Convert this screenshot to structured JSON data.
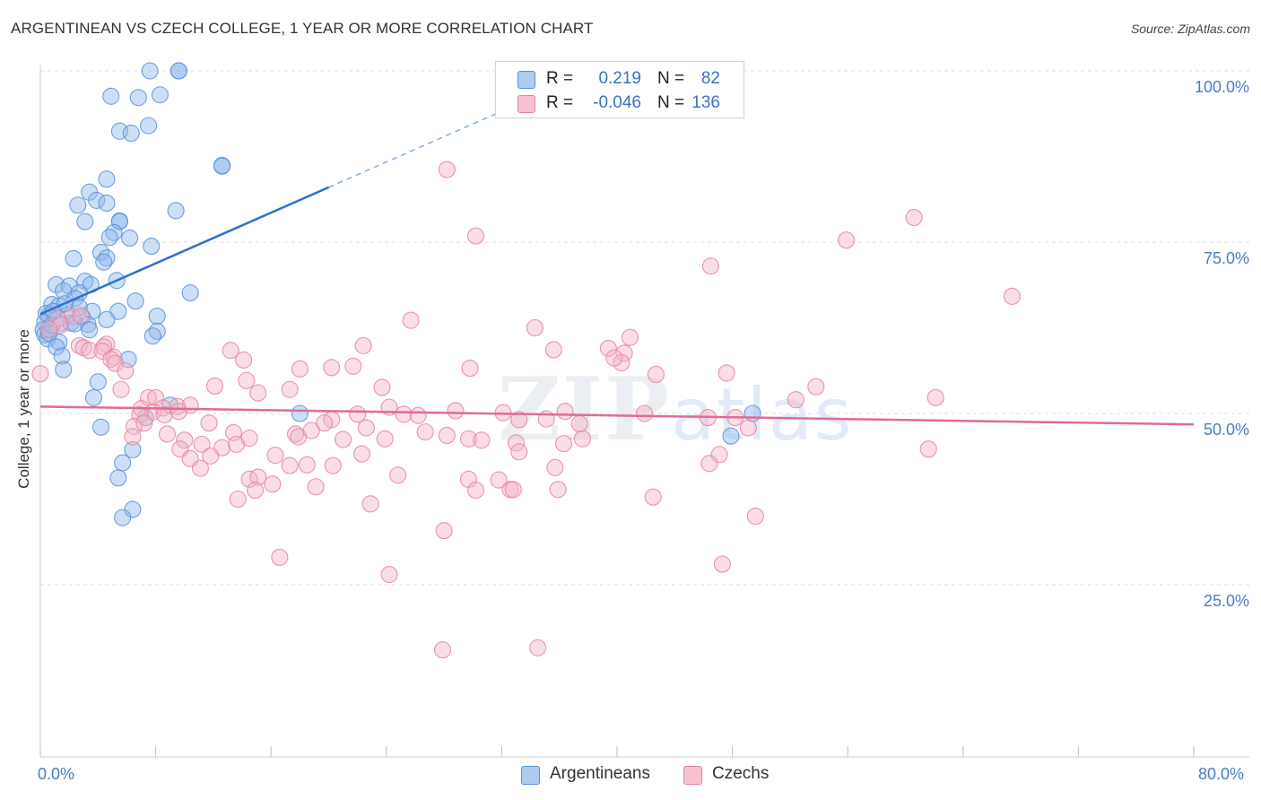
{
  "header": {
    "title": "ARGENTINEAN VS CZECH COLLEGE, 1 YEAR OR MORE CORRELATION CHART",
    "source": "Source: ZipAtlas.com"
  },
  "watermark": {
    "zip": "ZIP",
    "atlas": "atlas"
  },
  "legend": {
    "r_label": "R =",
    "n_label": "N =",
    "rows": [
      {
        "name": "Argentineans",
        "r": "0.219",
        "n": "82",
        "fill": "#aecbf0",
        "stroke": "#5b8fd8"
      },
      {
        "name": "Czechs",
        "r": "-0.046",
        "n": "136",
        "fill": "#f7c1d0",
        "stroke": "#e583a3"
      }
    ]
  },
  "colors": {
    "blue_fill": "#8fb8ec",
    "blue_stroke": "#5b8fd8",
    "blue_line": "#2f6fd0",
    "pink_fill": "#f4b3c6",
    "pink_stroke": "#e583a3",
    "pink_line": "#e06b96",
    "grid": "#dcdcdc",
    "axis_label": "#4a7cc8"
  },
  "axes": {
    "ylabel": "College, 1 year or more",
    "x_min_label": "0.0%",
    "x_max_label": "80.0%",
    "y_ticks": [
      "100.0%",
      "75.0%",
      "50.0%",
      "25.0%"
    ]
  },
  "chart_data": {
    "type": "scatter",
    "title": "ARGENTINEAN VS CZECH COLLEGE, 1 YEAR OR MORE CORRELATION CHART",
    "xlabel": "",
    "ylabel": "College, 1 year or more",
    "xlim": [
      0,
      80
    ],
    "ylim": [
      0,
      103
    ],
    "y_gridlines": [
      25,
      50,
      75,
      100
    ],
    "series": [
      {
        "name": "Argentineans",
        "r": 0.219,
        "n": 82,
        "trend": {
          "x_solid": [
            0,
            20
          ],
          "y_solid": [
            64.5,
            83
          ],
          "x_dash_end": 40,
          "y_dash_end": 101.5
        },
        "points": [
          [
            7.6,
            100
          ],
          [
            9.6,
            100
          ],
          [
            9.6,
            100
          ],
          [
            4.9,
            96.3
          ],
          [
            6.8,
            96.1
          ],
          [
            8.3,
            96.5
          ],
          [
            5.5,
            91.2
          ],
          [
            6.3,
            90.9
          ],
          [
            7.5,
            92
          ],
          [
            12.6,
            86.2
          ],
          [
            12.6,
            86.1
          ],
          [
            4.6,
            84.2
          ],
          [
            3.4,
            82.3
          ],
          [
            3.9,
            81.1
          ],
          [
            4.6,
            80.7
          ],
          [
            2.6,
            80.4
          ],
          [
            9.4,
            79.6
          ],
          [
            3.1,
            78
          ],
          [
            5.5,
            78.1
          ],
          [
            5.5,
            78
          ],
          [
            5.1,
            76.4
          ],
          [
            6.2,
            75.6
          ],
          [
            4.8,
            75.7
          ],
          [
            7.7,
            74.4
          ],
          [
            4.2,
            73.5
          ],
          [
            4.6,
            72.7
          ],
          [
            2.3,
            72.6
          ],
          [
            4.4,
            72.1
          ],
          [
            5.3,
            69.4
          ],
          [
            1.1,
            68.8
          ],
          [
            2,
            68.6
          ],
          [
            3.1,
            69.3
          ],
          [
            3.5,
            68.8
          ],
          [
            1.6,
            67.9
          ],
          [
            2.7,
            67.6
          ],
          [
            10.4,
            67.6
          ],
          [
            2.4,
            66.8
          ],
          [
            6.6,
            66.4
          ],
          [
            0.8,
            65.9
          ],
          [
            1.3,
            65.7
          ],
          [
            2.7,
            65.5
          ],
          [
            3.6,
            64.9
          ],
          [
            5.4,
            64.9
          ],
          [
            0.4,
            64.6
          ],
          [
            0.6,
            64.3
          ],
          [
            2.9,
            64.1
          ],
          [
            8.1,
            64.2
          ],
          [
            4.6,
            63.7
          ],
          [
            0.3,
            63.3
          ],
          [
            1.4,
            63.2
          ],
          [
            2.1,
            63.2
          ],
          [
            3.3,
            63
          ],
          [
            0.2,
            62.2
          ],
          [
            3.4,
            62.2
          ],
          [
            8.1,
            62
          ],
          [
            0.3,
            61.5
          ],
          [
            0.5,
            60.9
          ],
          [
            7.8,
            61.3
          ],
          [
            1.3,
            60.4
          ],
          [
            1.1,
            59.7
          ],
          [
            1.5,
            58.4
          ],
          [
            6.1,
            57.9
          ],
          [
            1.6,
            56.4
          ],
          [
            4,
            54.6
          ],
          [
            3.7,
            52.3
          ],
          [
            9,
            51.2
          ],
          [
            18,
            50
          ],
          [
            7.3,
            49.4
          ],
          [
            4.2,
            48
          ],
          [
            6.4,
            44.7
          ],
          [
            5.7,
            42.8
          ],
          [
            5.4,
            40.6
          ],
          [
            6.4,
            36
          ],
          [
            5.7,
            34.8
          ],
          [
            0.6,
            61.7
          ],
          [
            1.9,
            64.4
          ],
          [
            2.4,
            63.1
          ],
          [
            1.7,
            66
          ],
          [
            0.8,
            62.9
          ],
          [
            47.9,
            46.7
          ],
          [
            49.4,
            50
          ],
          [
            0.9,
            64.9
          ]
        ]
      },
      {
        "name": "Czechs",
        "r": -0.046,
        "n": 136,
        "trend": {
          "x": [
            0,
            80
          ],
          "y": [
            51,
            48.4
          ]
        },
        "points": [
          [
            28.2,
            85.6
          ],
          [
            30.2,
            75.9
          ],
          [
            60.6,
            78.6
          ],
          [
            55.9,
            75.3
          ],
          [
            46.5,
            71.5
          ],
          [
            67.4,
            67.1
          ],
          [
            25.7,
            63.6
          ],
          [
            34.3,
            62.5
          ],
          [
            2.2,
            64.2
          ],
          [
            2.8,
            64.3
          ],
          [
            1.2,
            63.8
          ],
          [
            1.4,
            62.9
          ],
          [
            0.6,
            62.3
          ],
          [
            4.6,
            60.1
          ],
          [
            2.7,
            59.9
          ],
          [
            4.4,
            59.7
          ],
          [
            3,
            59.6
          ],
          [
            3.4,
            59.2
          ],
          [
            4.3,
            59.1
          ],
          [
            5.1,
            58.2
          ],
          [
            4.9,
            57.9
          ],
          [
            5.2,
            57.3
          ],
          [
            13.2,
            59.2
          ],
          [
            14.1,
            57.8
          ],
          [
            22.4,
            59.9
          ],
          [
            35.6,
            59.3
          ],
          [
            39.4,
            59.5
          ],
          [
            40.5,
            58.8
          ],
          [
            40.3,
            57.4
          ],
          [
            40.9,
            61.1
          ],
          [
            39.8,
            58.1
          ],
          [
            18,
            56.5
          ],
          [
            20.2,
            56.7
          ],
          [
            21.7,
            56.9
          ],
          [
            29.8,
            56.6
          ],
          [
            42.7,
            55.7
          ],
          [
            47.6,
            55.9
          ],
          [
            14.3,
            54.8
          ],
          [
            12.1,
            54
          ],
          [
            15.1,
            53
          ],
          [
            17.3,
            53.5
          ],
          [
            23.7,
            53.8
          ],
          [
            53.8,
            53.9
          ],
          [
            52.4,
            52
          ],
          [
            62.1,
            52.3
          ],
          [
            5.6,
            53.5
          ],
          [
            7.5,
            52.3
          ],
          [
            8,
            52.3
          ],
          [
            8.5,
            50.8
          ],
          [
            7,
            50.7
          ],
          [
            9.5,
            51
          ],
          [
            10.4,
            51.2
          ],
          [
            7.8,
            50.2
          ],
          [
            8.6,
            49.8
          ],
          [
            9.6,
            50.3
          ],
          [
            6.9,
            49.8
          ],
          [
            20.2,
            49.1
          ],
          [
            22,
            49.9
          ],
          [
            24.2,
            50.9
          ],
          [
            25.2,
            49.9
          ],
          [
            26.2,
            49.7
          ],
          [
            28.8,
            50.4
          ],
          [
            32.1,
            50.1
          ],
          [
            36.4,
            50.3
          ],
          [
            33.2,
            49.1
          ],
          [
            35.1,
            49.2
          ],
          [
            41.9,
            50
          ],
          [
            46.3,
            49.4
          ],
          [
            48.2,
            49.4
          ],
          [
            6.5,
            48.1
          ],
          [
            7.2,
            48.6
          ],
          [
            11.7,
            48.6
          ],
          [
            13.4,
            47.2
          ],
          [
            17.7,
            47
          ],
          [
            17.9,
            46.6
          ],
          [
            18.8,
            47.5
          ],
          [
            19.7,
            48.6
          ],
          [
            22.6,
            47.9
          ],
          [
            26.7,
            47.3
          ],
          [
            28.2,
            46.8
          ],
          [
            29.7,
            46.3
          ],
          [
            30.6,
            46.1
          ],
          [
            37.6,
            46.3
          ],
          [
            49.1,
            47.9
          ],
          [
            6.4,
            46.6
          ],
          [
            8.8,
            47
          ],
          [
            10,
            46.1
          ],
          [
            11.2,
            45.5
          ],
          [
            12.6,
            45
          ],
          [
            13.6,
            45.5
          ],
          [
            14.5,
            46.4
          ],
          [
            21,
            46.2
          ],
          [
            23.9,
            46.3
          ],
          [
            33,
            45.7
          ],
          [
            33.2,
            44.4
          ],
          [
            36.3,
            45.6
          ],
          [
            47.1,
            44
          ],
          [
            61.6,
            44.8
          ],
          [
            9.7,
            44.8
          ],
          [
            10.4,
            43.4
          ],
          [
            11.8,
            43.8
          ],
          [
            16.3,
            43.9
          ],
          [
            17.3,
            42.4
          ],
          [
            18.5,
            42.5
          ],
          [
            20.3,
            42.4
          ],
          [
            22.3,
            44.1
          ],
          [
            35.7,
            42.1
          ],
          [
            37.4,
            48.5
          ],
          [
            46.4,
            42.7
          ],
          [
            11.1,
            42
          ],
          [
            14.5,
            40.4
          ],
          [
            15.1,
            40.7
          ],
          [
            16.1,
            39.7
          ],
          [
            24.8,
            41
          ],
          [
            29.7,
            40.4
          ],
          [
            31.8,
            40.3
          ],
          [
            19.1,
            39.3
          ],
          [
            14.9,
            38.8
          ],
          [
            13.7,
            37.5
          ],
          [
            30.2,
            38.8
          ],
          [
            32.6,
            38.9
          ],
          [
            32.8,
            38.9
          ],
          [
            35.9,
            38.9
          ],
          [
            42.5,
            37.8
          ],
          [
            22.9,
            36.8
          ],
          [
            28,
            32.9
          ],
          [
            49.6,
            35
          ],
          [
            16.6,
            29
          ],
          [
            24.2,
            26.5
          ],
          [
            47.3,
            28
          ],
          [
            27.9,
            15.5
          ],
          [
            34.5,
            15.8
          ],
          [
            0,
            55.8
          ],
          [
            5.9,
            56.2
          ]
        ]
      }
    ]
  }
}
